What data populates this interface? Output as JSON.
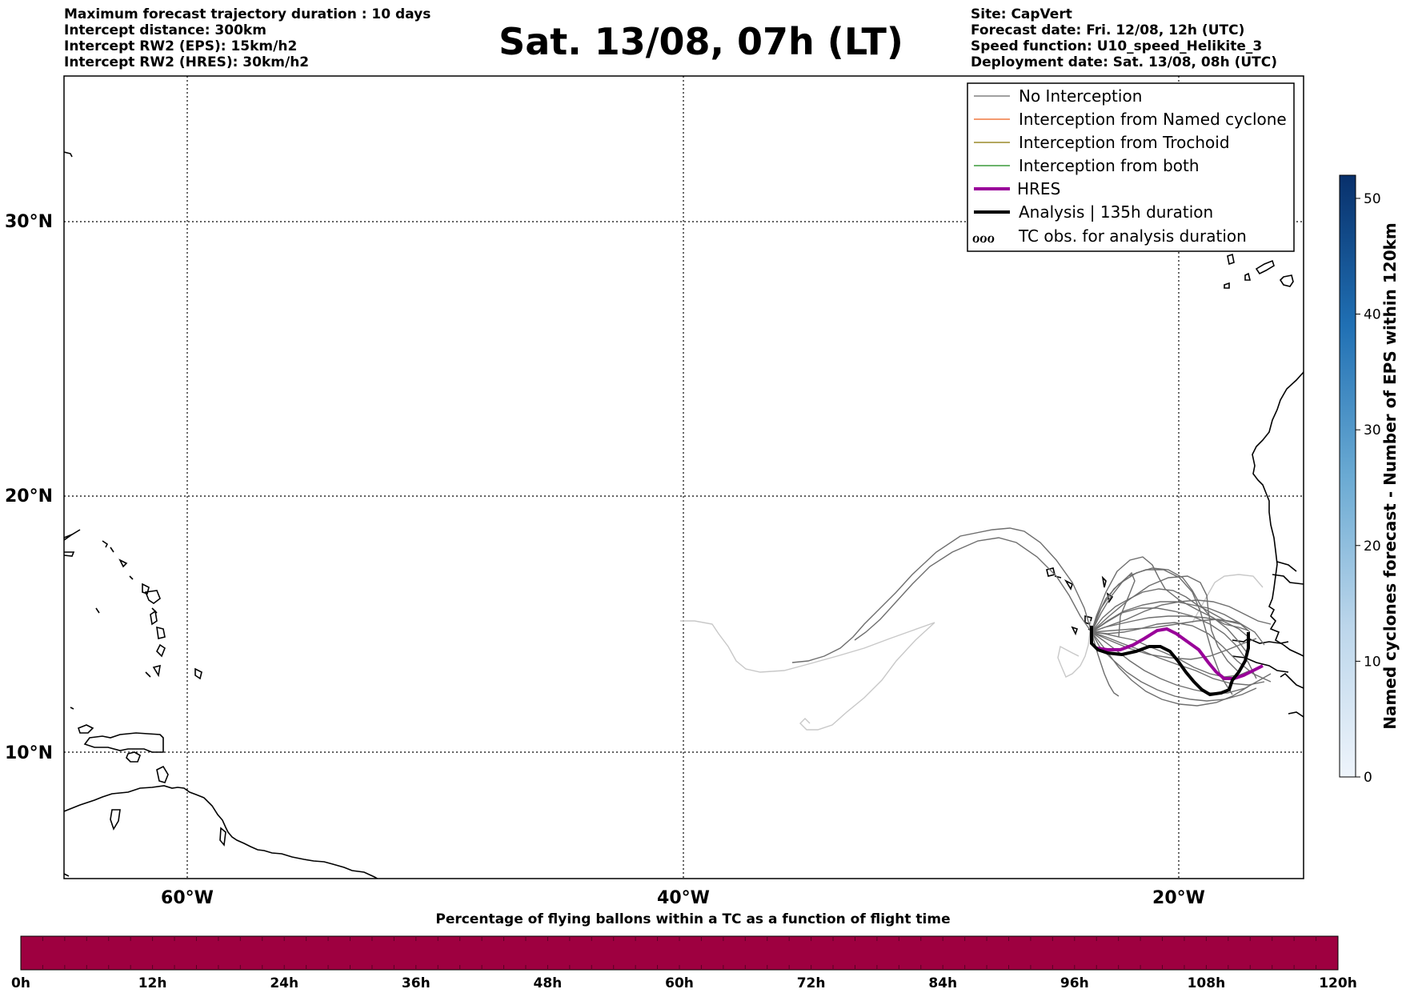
{
  "header": {
    "left_lines": [
      "Maximum forecast trajectory duration : 10 days",
      "Intercept distance: 300km",
      "Intercept RW2 (EPS):  15km/h2",
      "Intercept RW2 (HRES): 30km/h2"
    ],
    "title": "Sat. 13/08, 07h (LT)",
    "right_lines": [
      "Site: CapVert",
      "Forecast date: Fri. 12/08, 12h (UTC)",
      "Speed function: U10_speed_Helikite_3",
      "Deployment date: Sat. 13/08, 08h (UTC)"
    ]
  },
  "map": {
    "lat_labels": [
      "30°N",
      "20°N",
      "10°N"
    ],
    "lon_labels": [
      "60°W",
      "40°W",
      "20°W"
    ],
    "grid": "dotted"
  },
  "legend": {
    "items": [
      {
        "label": "No Interception",
        "color": "#808080"
      },
      {
        "label": "Interception from Named cyclone",
        "color": "#f07840"
      },
      {
        "label": "Interception from Trochoid",
        "color": "#9a8a2a"
      },
      {
        "label": "Interception from both",
        "color": "#3a9a3a"
      },
      {
        "label": "HRES",
        "color": "#990099"
      },
      {
        "label": "Analysis | 135h duration",
        "color": "#000000"
      },
      {
        "label": "TC obs. for analysis duration",
        "symbol": "ℴℴℴ"
      }
    ]
  },
  "colorbar_right": {
    "label": "Named cyclones forecast - Number of EPS within 120km",
    "ticks": [
      "50",
      "40",
      "30",
      "20",
      "10",
      "0"
    ],
    "range": [
      0,
      52
    ],
    "colors": [
      "#e8f0fa",
      "#08306b"
    ]
  },
  "colorbar_bottom": {
    "label": "Percentage of flying ballons within a TC as a function of flight time",
    "ticks": [
      "0h",
      "12h",
      "24h",
      "36h",
      "48h",
      "60h",
      "72h",
      "84h",
      "96h",
      "108h",
      "120h"
    ],
    "fill_color": "#9e0040",
    "value": 0
  }
}
